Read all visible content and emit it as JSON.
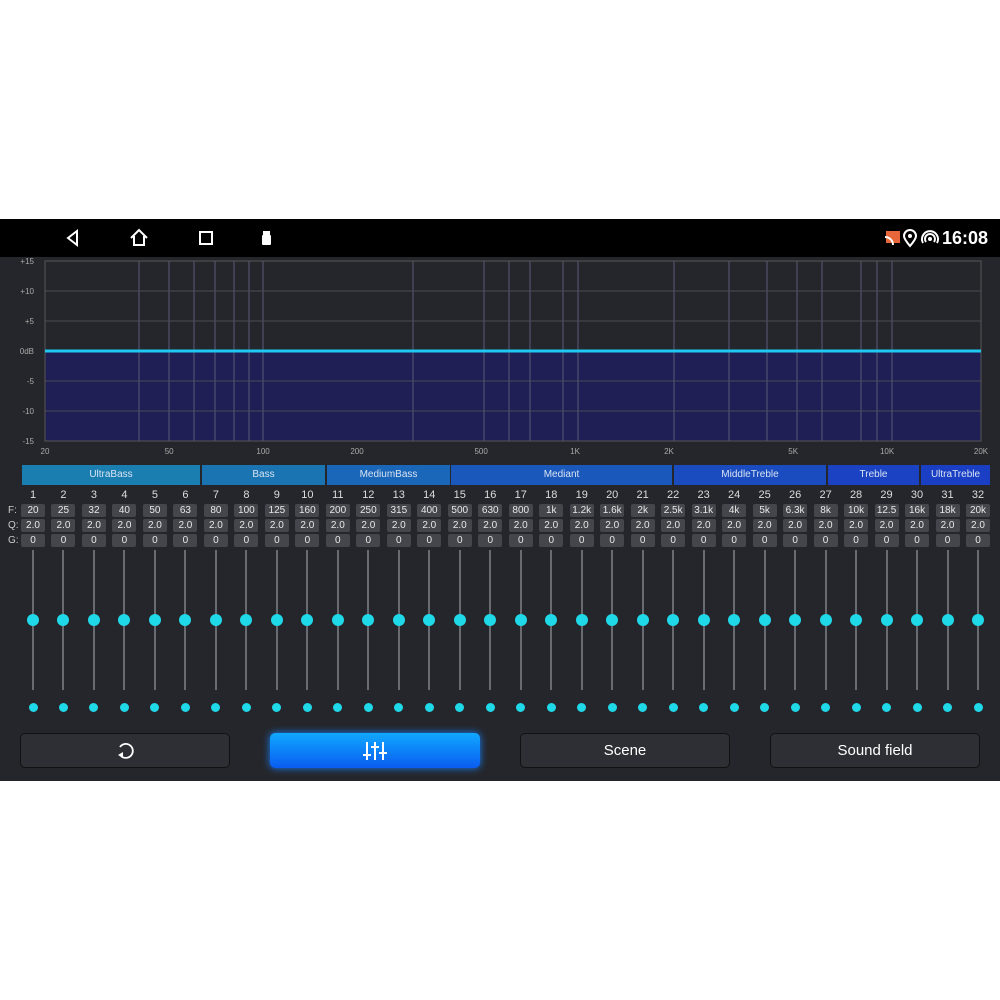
{
  "status_bar": {
    "time": "16:08",
    "icons": [
      "back-icon",
      "home-icon",
      "recents-icon",
      "usb-icon",
      "cast-icon",
      "location-icon",
      "hotspot-icon"
    ]
  },
  "graph": {
    "type": "line",
    "y_ticks": [
      "+15",
      "+10",
      "+5",
      "0dB",
      "-5",
      "-10",
      "-15"
    ],
    "x_ticks": [
      "20",
      "50",
      "100",
      "200",
      "500",
      "1K",
      "2K",
      "5K",
      "10K",
      "20K"
    ],
    "x_tick_values": [
      20,
      50,
      100,
      200,
      500,
      1000,
      2000,
      5000,
      10000,
      20000
    ],
    "ylim": [
      -15,
      15
    ],
    "xlim": [
      20,
      20000
    ],
    "x_scale": "log",
    "curve_gain_db": 0,
    "line_color": "#1ec8f0",
    "fill_color": "#1f1f55"
  },
  "groups": [
    "UltraBass",
    "Bass",
    "MediumBass",
    "Mediant",
    "MiddleTreble",
    "Treble",
    "UltraTreble"
  ],
  "row_labels": {
    "f": "F:",
    "q": "Q:",
    "g": "G:"
  },
  "bands": {
    "numbers": [
      "1",
      "2",
      "3",
      "4",
      "5",
      "6",
      "7",
      "8",
      "9",
      "10",
      "11",
      "12",
      "13",
      "14",
      "15",
      "16",
      "17",
      "18",
      "19",
      "20",
      "21",
      "22",
      "23",
      "24",
      "25",
      "26",
      "27",
      "28",
      "29",
      "30",
      "31",
      "32"
    ],
    "freqs": [
      "20",
      "25",
      "32",
      "40",
      "50",
      "63",
      "80",
      "100",
      "125",
      "160",
      "200",
      "250",
      "315",
      "400",
      "500",
      "630",
      "800",
      "1k",
      "1.2k",
      "1.6k",
      "2k",
      "2.5k",
      "3.1k",
      "4k",
      "5k",
      "6.3k",
      "8k",
      "10k",
      "12.5",
      "16k",
      "18k",
      "20k"
    ],
    "q": "2.0",
    "gain": "0",
    "gain_range": [
      -15,
      15
    ]
  },
  "buttons": {
    "reset_icon": "reset-icon",
    "eq_icon": "equalizer-icon",
    "scene": "Scene",
    "sound_field": "Sound field",
    "active": "equalizer"
  },
  "accent": "#1fd8e8"
}
